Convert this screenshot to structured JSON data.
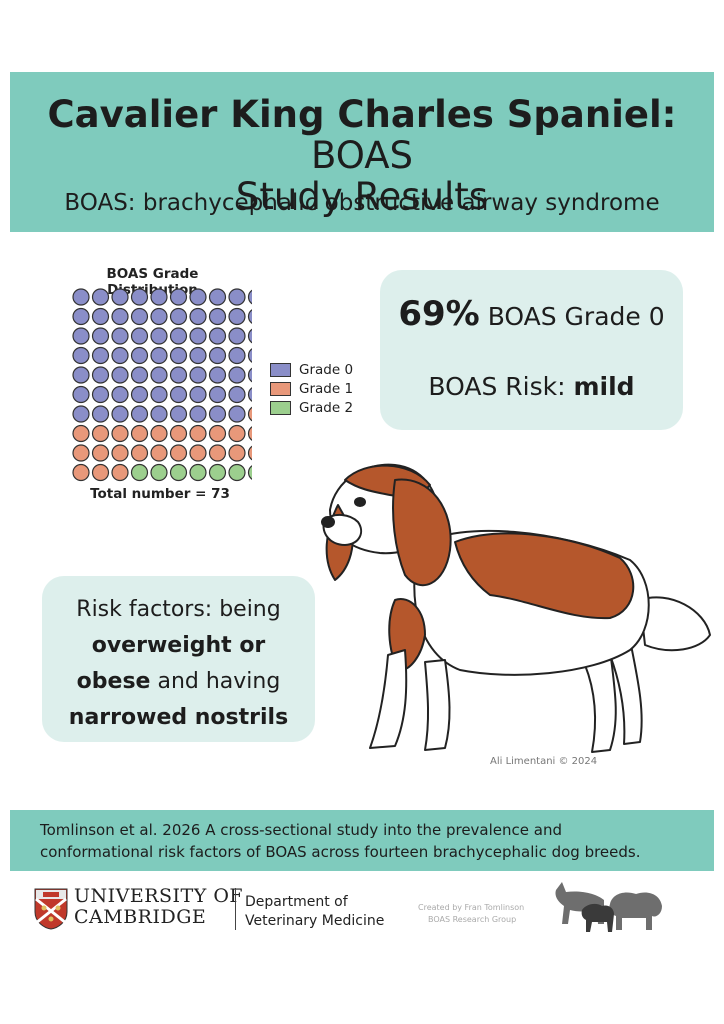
{
  "header": {
    "title_bold": "Cavalier King Charles Spaniel:",
    "title_rest": "BOAS",
    "title_line2": "Study Results",
    "subtitle": "BOAS: brachycephalic obstructive airway syndrome"
  },
  "stat": {
    "percent": "69%",
    "percent_label": "BOAS Grade 0",
    "risk_label": "BOAS Risk:",
    "risk_value": "mild"
  },
  "risk_factors": {
    "t1": "Risk factors: being",
    "t2": "overweight or",
    "t3": "obese",
    "t4": "and having",
    "t5": "narrowed nostrils"
  },
  "chart_data": {
    "type": "waffle",
    "title": "BOAS Grade Distribution",
    "categories": [
      "Grade 0",
      "Grade 1",
      "Grade 2"
    ],
    "values": [
      69,
      24,
      7
    ],
    "colors": [
      "#8a8ec8",
      "#e8987a",
      "#9ccf8e"
    ],
    "grid": [
      10,
      10
    ],
    "total_label": "Total number = 73"
  },
  "artist_credit": "Ali Limentani © 2024",
  "citation": {
    "line1": "Tomlinson et al. 2026 A cross-sectional study into the prevalence and",
    "line2": "conformational risk factors of BOAS across fourteen brachycephalic dog breeds."
  },
  "footer": {
    "university_line1": "UNIVERSITY OF",
    "university_line2": "CAMBRIDGE",
    "dept_line1": "Department of",
    "dept_line2": "Veterinary Medicine",
    "created_line1": "Created by Fran Tomlinson",
    "created_line2": "BOAS Research Group"
  },
  "colors": {
    "teal": "#7fcbbd",
    "pale_teal": "#ddefec",
    "dog_brown": "#b5572c"
  }
}
